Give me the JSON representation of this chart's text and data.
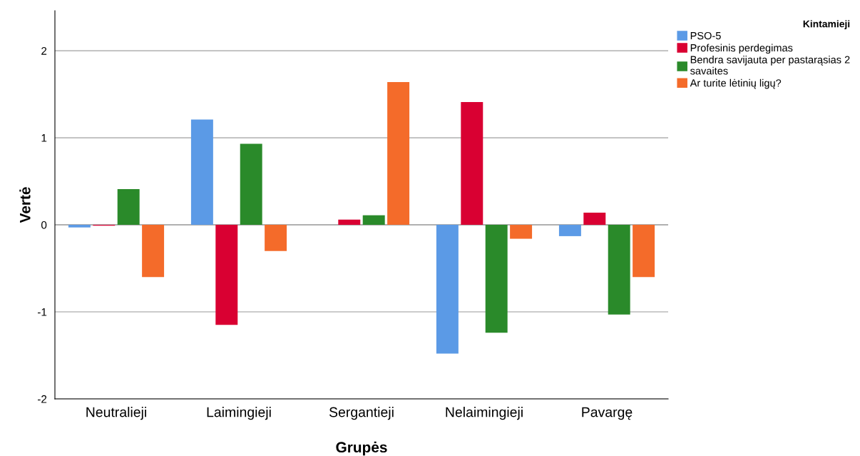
{
  "chart_data": {
    "type": "bar",
    "xlabel": "Grupės",
    "ylabel": "Vertė",
    "legend_title": "Kintamieji",
    "legend": "top right",
    "grid": "y",
    "categories": [
      "Neutralieji",
      "Laimingieji",
      "Sergantieji",
      "Nelaimingieji",
      "Pavargę"
    ],
    "series": [
      {
        "name": "PSO-5",
        "color": "#5b9ae6",
        "values": [
          -0.03,
          1.21,
          0.0,
          -1.48,
          -0.13
        ]
      },
      {
        "name": "Profesinis perdegimas",
        "color": "#d90032",
        "values": [
          -0.01,
          -1.15,
          0.06,
          1.41,
          0.14
        ]
      },
      {
        "name": "Bendra savijauta per pastarąsias 2 savaites",
        "color": "#2a8a2a",
        "values": [
          0.41,
          0.93,
          0.11,
          -1.24,
          -1.03
        ]
      },
      {
        "name": "Ar turite lėtinių ligų?",
        "color": "#f46b2a",
        "values": [
          -0.6,
          -0.3,
          1.64,
          -0.16,
          -0.6
        ]
      }
    ],
    "ylim": [
      -2,
      2.46
    ],
    "yticks": [
      -2,
      -1,
      0,
      1,
      2
    ]
  }
}
